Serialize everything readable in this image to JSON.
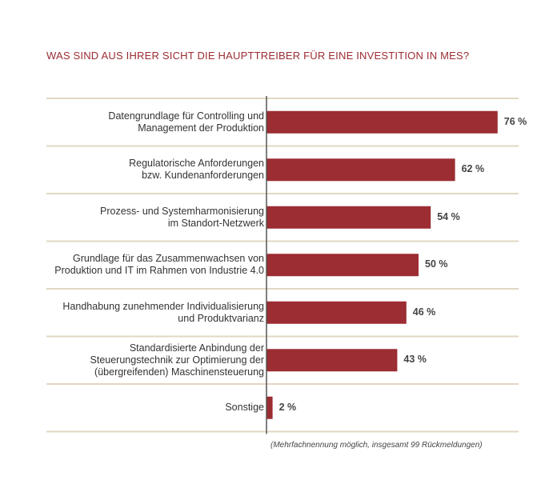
{
  "title": "WAS SIND AUS IHRER SICHT DIE HAUPTTREIBER FÜR EINE INVESTITION IN MES?",
  "footnote": "(Mehrfachnennung möglich, insgesamt 99 Rückmeldungen)",
  "colors": {
    "bar": "#9b2d33",
    "divider": "#e2d7c2",
    "axis": "#555555"
  },
  "chart_data": {
    "type": "bar",
    "orientation": "horizontal",
    "title": "WAS SIND AUS IHRER SICHT DIE HAUPTTREIBER FÜR EINE INVESTITION IN MES?",
    "categories": [
      "Datengrundlage für Controlling und\nManagement der Produktion",
      "Regulatorische Anforderungen\nbzw. Kundenanforderungen",
      "Prozess- und Systemharmonisierung\nim Standort-Netzwerk",
      "Grundlage für das Zusammenwachsen von\nProduktion und IT im Rahmen von Industrie 4.0",
      "Handhabung zunehmender Individualisierung\nund Produktvarianz",
      "Standardisierte Anbindung der\nSteuerungstechnik zur Optimierung der\n(übergreifenden) Maschinensteuerung",
      "Sonstige"
    ],
    "values": [
      76,
      62,
      54,
      50,
      46,
      43,
      2
    ],
    "value_labels": [
      "76 %",
      "62 %",
      "54 %",
      "50 %",
      "46 %",
      "43 %",
      "2 %"
    ],
    "unit": "%",
    "xlim": [
      0,
      100
    ],
    "grid": false,
    "legend": "none"
  }
}
